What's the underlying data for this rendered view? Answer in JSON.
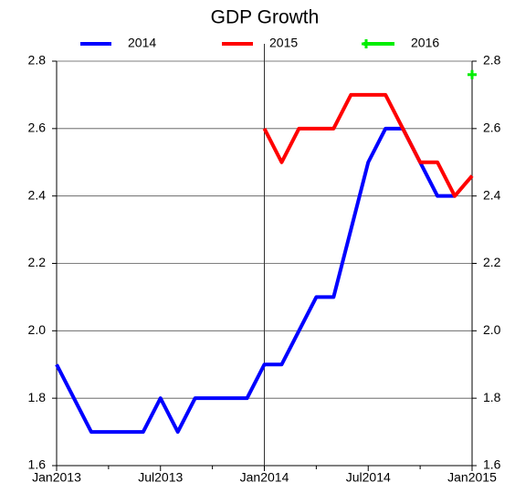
{
  "chart_data": {
    "type": "line",
    "title": "GDP Growth",
    "x": [
      "2013-01",
      "2013-02",
      "2013-03",
      "2013-04",
      "2013-05",
      "2013-06",
      "2013-07",
      "2013-08",
      "2013-09",
      "2013-10",
      "2013-11",
      "2013-12",
      "2014-01",
      "2014-02",
      "2014-03",
      "2014-04",
      "2014-05",
      "2014-06",
      "2014-07",
      "2014-08",
      "2014-09",
      "2014-10",
      "2014-11",
      "2014-12",
      "2015-01"
    ],
    "series": [
      {
        "name": "2014",
        "color": "#0000ff",
        "values": [
          1.9,
          1.8,
          1.7,
          1.7,
          1.7,
          1.7,
          1.8,
          1.7,
          1.8,
          1.8,
          1.8,
          1.8,
          1.9,
          1.9,
          2.0,
          2.1,
          2.1,
          2.3,
          2.5,
          2.6,
          2.6,
          2.5,
          2.4,
          2.4,
          null
        ]
      },
      {
        "name": "2015",
        "color": "#ff0000",
        "values": [
          null,
          null,
          null,
          null,
          null,
          null,
          null,
          null,
          null,
          null,
          null,
          null,
          2.6,
          2.5,
          2.6,
          2.6,
          2.6,
          2.7,
          2.7,
          2.7,
          2.6,
          2.5,
          2.5,
          2.4,
          2.46
        ]
      },
      {
        "name": "2016",
        "color": "#00ee00",
        "marker": "plus",
        "values": [
          null,
          null,
          null,
          null,
          null,
          null,
          null,
          null,
          null,
          null,
          null,
          null,
          null,
          null,
          null,
          null,
          null,
          null,
          null,
          null,
          null,
          null,
          null,
          null,
          2.76
        ]
      }
    ],
    "xticks": [
      {
        "value": "2013-01",
        "label": "Jan2013"
      },
      {
        "value": "2013-07",
        "label": "Jul2013"
      },
      {
        "value": "2014-01",
        "label": "Jan2014"
      },
      {
        "value": "2014-07",
        "label": "Jul2014"
      },
      {
        "value": "2015-01",
        "label": "Jan2015"
      }
    ],
    "xminor_ticks": [
      "2013-04",
      "2013-10",
      "2014-04",
      "2014-10"
    ],
    "vline": "2014-01",
    "ylim": [
      1.6,
      2.8
    ],
    "yticks": [
      1.6,
      1.8,
      {
        "value": 2.0,
        "label": "2.0"
      },
      2.2,
      2.4,
      2.6,
      2.8
    ],
    "y2lim": [
      1.6,
      2.8
    ],
    "y2ticks": [
      1.6,
      1.8,
      {
        "value": 2.0,
        "label": "2.0"
      },
      2.2,
      2.4,
      2.6,
      2.8
    ],
    "grid": true,
    "legend": "top"
  }
}
